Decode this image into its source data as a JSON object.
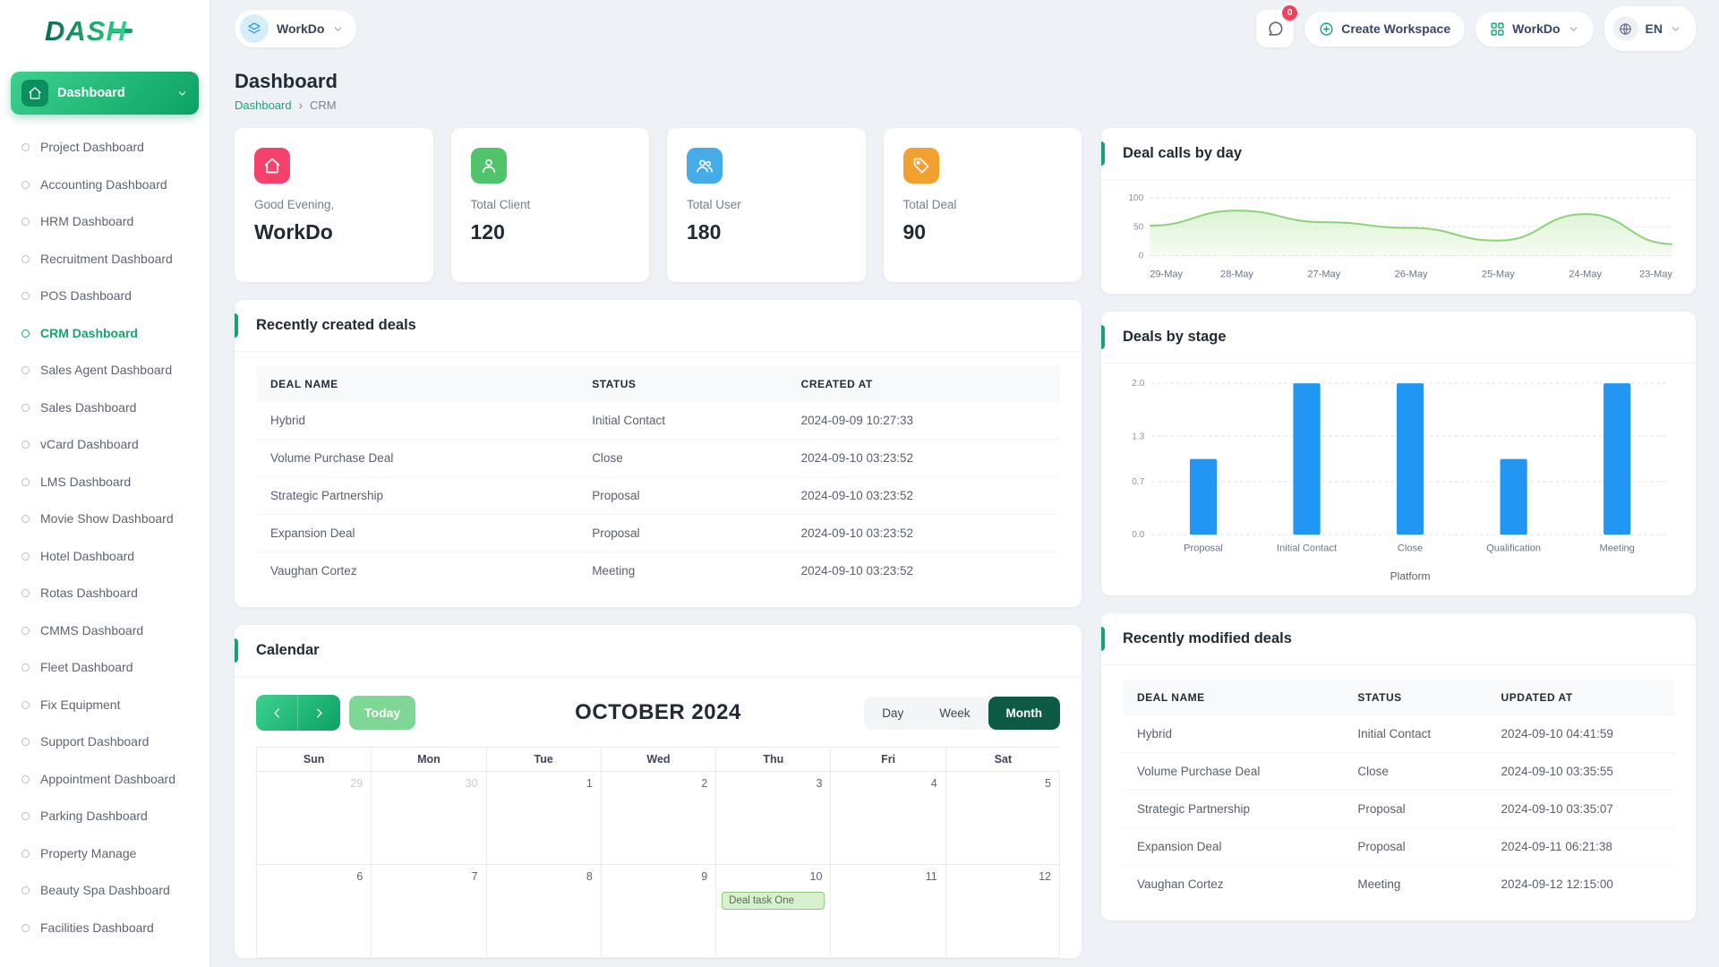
{
  "theme": {
    "accent": "#17a26f",
    "bar_blue": "#2196f3",
    "area_line": "#8ed17c",
    "area_fill": "#dcf3d2",
    "badge_red": "#f43f5e"
  },
  "topbar": {
    "logo": "DASH",
    "workspace_pill": {
      "label": "WorkDo"
    },
    "messages_badge": "0",
    "create_workspace": "Create Workspace",
    "account_pill": "WorkDo",
    "language": "EN"
  },
  "sidebar": {
    "main_item": "Dashboard",
    "active_item": "CRM Dashboard",
    "items": [
      "Project Dashboard",
      "Accounting Dashboard",
      "HRM Dashboard",
      "Recruitment Dashboard",
      "POS Dashboard",
      "CRM Dashboard",
      "Sales Agent Dashboard",
      "Sales Dashboard",
      "vCard Dashboard",
      "LMS Dashboard",
      "Movie Show Dashboard",
      "Hotel Dashboard",
      "Rotas Dashboard",
      "CMMS Dashboard",
      "Fleet Dashboard",
      "Fix Equipment",
      "Support Dashboard",
      "Appointment Dashboard",
      "Parking Dashboard",
      "Property Manage",
      "Beauty Spa Dashboard",
      "Facilities Dashboard"
    ]
  },
  "page": {
    "title": "Dashboard",
    "breadcrumb": [
      "Dashboard",
      "CRM"
    ],
    "separator": "›"
  },
  "stats": [
    {
      "icon": "home",
      "color": "#f5426c",
      "label": "Good Evening,",
      "value": "WorkDo"
    },
    {
      "icon": "client",
      "color": "#4fc46a",
      "label": "Total Client",
      "value": "120"
    },
    {
      "icon": "users",
      "color": "#47abe8",
      "label": "Total User",
      "value": "180"
    },
    {
      "icon": "deal",
      "color": "#f2a12e",
      "label": "Total Deal",
      "value": "90"
    }
  ],
  "recently_created": {
    "title": "Recently created deals",
    "headers": [
      "DEAL NAME",
      "STATUS",
      "CREATED AT"
    ],
    "rows": [
      [
        "Hybrid",
        "Initial Contact",
        "2024-09-09 10:27:33"
      ],
      [
        "Volume Purchase Deal",
        "Close",
        "2024-09-10 03:23:52"
      ],
      [
        "Strategic Partnership",
        "Proposal",
        "2024-09-10 03:23:52"
      ],
      [
        "Expansion Deal",
        "Proposal",
        "2024-09-10 03:23:52"
      ],
      [
        "Vaughan Cortez",
        "Meeting",
        "2024-09-10 03:23:52"
      ]
    ]
  },
  "calendar": {
    "title": "Calendar",
    "today": "Today",
    "month_label": "OCTOBER 2024",
    "views": [
      "Day",
      "Week",
      "Month"
    ],
    "active_view": "Month",
    "weekdays": [
      "Sun",
      "Mon",
      "Tue",
      "Wed",
      "Thu",
      "Fri",
      "Sat"
    ],
    "weeks": [
      [
        {
          "d": "29",
          "out": true
        },
        {
          "d": "30",
          "out": true
        },
        {
          "d": "1"
        },
        {
          "d": "2"
        },
        {
          "d": "3"
        },
        {
          "d": "4"
        },
        {
          "d": "5"
        }
      ],
      [
        {
          "d": "6"
        },
        {
          "d": "7"
        },
        {
          "d": "8"
        },
        {
          "d": "9"
        },
        {
          "d": "10",
          "event": "Deal task One"
        },
        {
          "d": "11"
        },
        {
          "d": "12"
        }
      ]
    ]
  },
  "chart_data": [
    {
      "type": "area",
      "title": "Deal calls by day",
      "x": [
        "29-May",
        "28-May",
        "27-May",
        "26-May",
        "25-May",
        "24-May",
        "23-May"
      ],
      "values": [
        52,
        78,
        58,
        48,
        26,
        72,
        20
      ],
      "ylim": [
        0,
        100
      ],
      "yticks": [
        100,
        50,
        0
      ],
      "grid": "dashed",
      "legend": "none",
      "line_color": "#8ed17c",
      "fill_color": "#dcf3d2"
    },
    {
      "type": "bar",
      "title": "Deals by stage",
      "categories": [
        "Proposal",
        "Initial Contact",
        "Close",
        "Qualification",
        "Meeting"
      ],
      "values": [
        1,
        2,
        2,
        1,
        2
      ],
      "ylim": [
        0,
        2
      ],
      "yticks": [
        "2.0",
        "1.3",
        "0.7",
        "0.0"
      ],
      "xlabel": "Platform",
      "grid": "dashed",
      "legend": "none",
      "bar_color": "#2196f3"
    }
  ],
  "recently_modified": {
    "title": "Recently modified deals",
    "headers": [
      "DEAL NAME",
      "STATUS",
      "UPDATED AT"
    ],
    "rows": [
      [
        "Hybrid",
        "Initial Contact",
        "2024-09-10 04:41:59"
      ],
      [
        "Volume Purchase Deal",
        "Close",
        "2024-09-10 03:35:55"
      ],
      [
        "Strategic Partnership",
        "Proposal",
        "2024-09-10 03:35:07"
      ],
      [
        "Expansion Deal",
        "Proposal",
        "2024-09-11 06:21:38"
      ],
      [
        "Vaughan Cortez",
        "Meeting",
        "2024-09-12 12:15:00"
      ]
    ]
  }
}
